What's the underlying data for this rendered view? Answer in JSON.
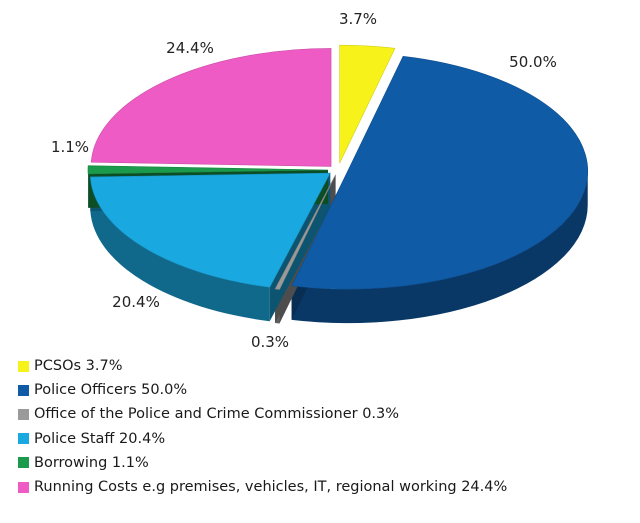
{
  "chart_data": {
    "type": "pie",
    "title": "",
    "legend_position": "bottom-left",
    "slices": [
      {
        "name": "PCSOs",
        "value": 3.7,
        "label": "3.7%",
        "color": "#f7f21a",
        "legend": "PCSOs 3.7%"
      },
      {
        "name": "Police Officers",
        "value": 50.0,
        "label": "50.0%",
        "color": "#0f5ba6",
        "legend": "Police Officers 50.0%"
      },
      {
        "name": "Office of the Police and Crime Commissioner",
        "value": 0.3,
        "label": "0.3%",
        "color": "#9a9a9a",
        "legend": "Office of the Police and Crime Commissioner 0.3%"
      },
      {
        "name": "Police Staff",
        "value": 20.4,
        "label": "20.4%",
        "color": "#1aa8e0",
        "legend": "Police Staff 20.4%"
      },
      {
        "name": "Borrowing",
        "value": 1.1,
        "label": "1.1%",
        "color": "#1a9a4a",
        "legend": "Borrowing 1.1%"
      },
      {
        "name": "Running Costs e.g premises, vehicles, IT, regional working",
        "value": 24.4,
        "label": "24.4%",
        "color": "#ee5bc4",
        "legend": "Running Costs e.g premises, vehicles, IT, regional working 24.4%"
      }
    ]
  }
}
